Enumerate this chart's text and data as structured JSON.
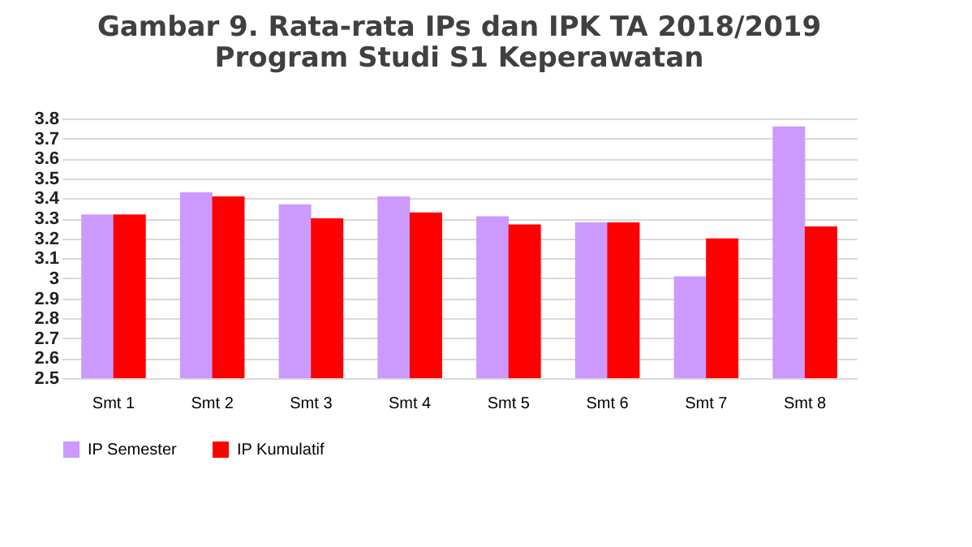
{
  "chart_data": {
    "type": "bar",
    "title": [
      "Gambar  9. Rata-rata  IPs dan IPK TA 2018/2019",
      "Program  Studi  S1 Keperawatan"
    ],
    "categories": [
      "Smt 1",
      "Smt  2",
      "Smt 3",
      "Smt 4",
      "Smt 5",
      "Smt 6",
      "Smt 7",
      "Smt 8"
    ],
    "series": [
      {
        "name": "IP Semester",
        "color": "#cc99ff",
        "values": [
          3.32,
          3.43,
          3.37,
          3.41,
          3.31,
          3.28,
          3.01,
          3.76
        ]
      },
      {
        "name": "IP Kumulatif",
        "color": "#ff0000",
        "values": [
          3.32,
          3.41,
          3.3,
          3.33,
          3.27,
          3.28,
          3.2,
          3.26
        ]
      }
    ],
    "ylim": [
      2.5,
      3.8
    ],
    "yticks": [
      2.5,
      2.6,
      2.7,
      2.8,
      2.9,
      3,
      3.1,
      3.2,
      3.3,
      3.4,
      3.5,
      3.6,
      3.7,
      3.8
    ],
    "grid": "y",
    "legend": "bottom"
  }
}
